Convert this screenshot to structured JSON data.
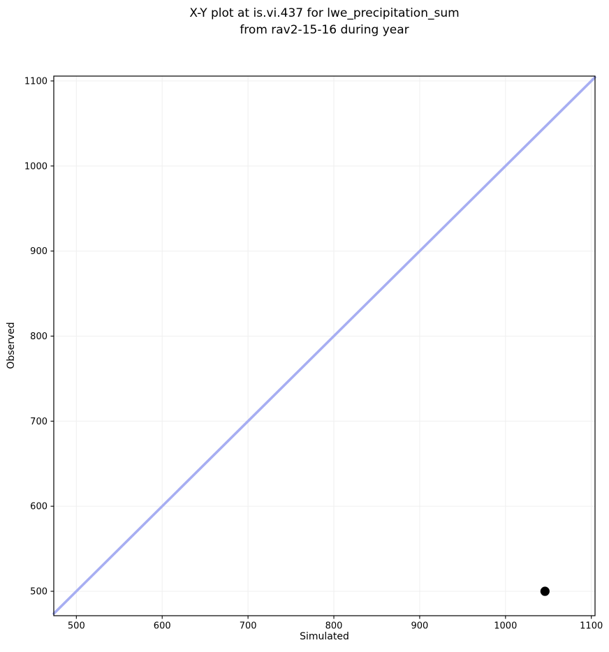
{
  "chart_data": {
    "type": "scatter",
    "title": "X-Y plot at is.vi.437 for lwe_precipitation_sum\nfrom rav2-15-16 during year",
    "title_lines": [
      "X-Y plot at is.vi.437 for lwe_precipitation_sum",
      "from rav2-15-16 during year"
    ],
    "xlabel": "Simulated",
    "ylabel": "Observed",
    "xlim": [
      473.7,
      1104.3
    ],
    "ylim": [
      471.3,
      1105.7
    ],
    "xticks": [
      500,
      600,
      700,
      800,
      900,
      1000,
      1100
    ],
    "yticks": [
      500,
      600,
      700,
      800,
      900,
      1000,
      1100
    ],
    "grid": true,
    "legend": false,
    "identity_line": true,
    "points": [
      {
        "x": 1046,
        "y": 500
      }
    ],
    "colors": {
      "identity_line": "#a7aef2",
      "point": "#000000",
      "grid": "#f0f0f0",
      "spine": "#000000",
      "background": "#ffffff"
    }
  }
}
